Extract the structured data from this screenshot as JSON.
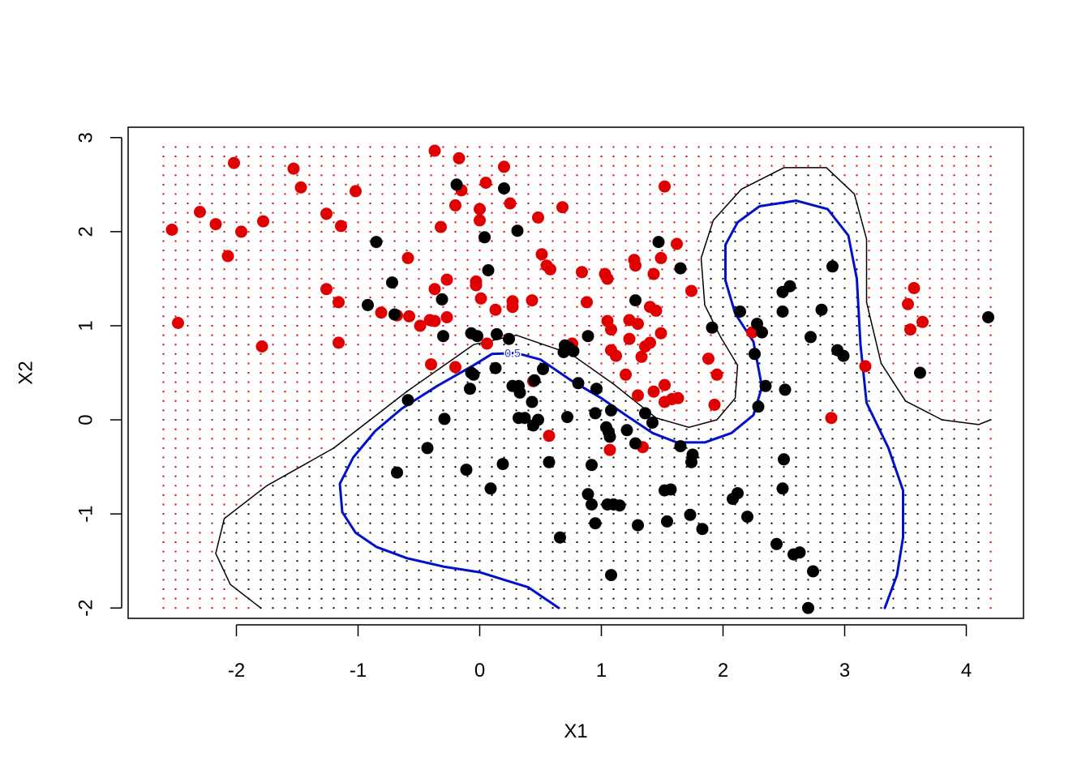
{
  "chart_data": {
    "type": "scatter",
    "title": "",
    "xlabel": "X1",
    "ylabel": "X2",
    "xlim": [
      -2.89,
      4.47
    ],
    "ylim": [
      -2.11,
      3.11
    ],
    "xticks": [
      "-2",
      "-1",
      "0",
      "1",
      "2",
      "3",
      "4"
    ],
    "xtick_values": [
      -2,
      -1,
      0,
      1,
      2,
      3,
      4
    ],
    "yticks": [
      "-2",
      "-1",
      "0",
      "1",
      "2",
      "3"
    ],
    "ytick_values": [
      -2,
      -1,
      0,
      1,
      2,
      3
    ],
    "grid": false,
    "legend": "none",
    "grid_background": {
      "x_range": [
        -2.6,
        4.2
      ],
      "y_range": [
        -2.0,
        2.9
      ],
      "columns": 69,
      "rows": 50,
      "class_colors": {
        "class_0": "#000000",
        "class_1": "#e00000"
      }
    },
    "series": [
      {
        "color": "#e00000",
        "points": [
          [
            -2.53,
            2.02
          ],
          [
            -2.48,
            1.03
          ],
          [
            -2.3,
            2.21
          ],
          [
            -2.17,
            2.08
          ],
          [
            -2.07,
            1.74
          ],
          [
            -2.02,
            2.73
          ],
          [
            -1.96,
            2.0
          ],
          [
            -1.78,
            2.11
          ],
          [
            -1.79,
            0.78
          ],
          [
            -1.53,
            2.67
          ],
          [
            -1.47,
            2.47
          ],
          [
            -1.26,
            2.19
          ],
          [
            -1.26,
            1.39
          ],
          [
            -1.16,
            1.25
          ],
          [
            -1.14,
            2.06
          ],
          [
            -1.16,
            0.82
          ],
          [
            -1.02,
            2.43
          ],
          [
            -0.81,
            1.14
          ],
          [
            -0.68,
            1.11
          ],
          [
            -0.59,
            1.72
          ],
          [
            -0.58,
            1.1
          ],
          [
            -0.49,
            1.0
          ],
          [
            -0.41,
            1.06
          ],
          [
            -0.37,
            1.39
          ],
          [
            -0.37,
            1.05
          ],
          [
            -0.37,
            2.86
          ],
          [
            -0.4,
            0.59
          ],
          [
            -0.32,
            2.05
          ],
          [
            -0.27,
            1.49
          ],
          [
            -0.27,
            1.09
          ],
          [
            -0.2,
            0.56
          ],
          [
            -0.2,
            2.28
          ],
          [
            -0.17,
            2.78
          ],
          [
            -0.15,
            2.44
          ],
          [
            -0.03,
            1.47
          ],
          [
            -0.03,
            1.43
          ],
          [
            0.0,
            2.24
          ],
          [
            0.0,
            2.12
          ],
          [
            0.01,
            1.29
          ],
          [
            0.05,
            2.52
          ],
          [
            0.06,
            0.81
          ],
          [
            0.13,
            1.17
          ],
          [
            0.2,
            2.69
          ],
          [
            0.25,
            2.3
          ],
          [
            0.27,
            1.26
          ],
          [
            0.27,
            1.2
          ],
          [
            0.43,
            1.27
          ],
          [
            0.44,
            0.41
          ],
          [
            0.48,
            2.15
          ],
          [
            0.51,
            1.76
          ],
          [
            0.55,
            1.64
          ],
          [
            0.58,
            1.6
          ],
          [
            0.57,
            -0.17
          ],
          [
            0.68,
            2.26
          ],
          [
            0.76,
            0.81
          ],
          [
            0.84,
            1.57
          ],
          [
            0.88,
            1.25
          ],
          [
            1.03,
            1.55
          ],
          [
            1.05,
            1.5
          ],
          [
            1.05,
            1.05
          ],
          [
            1.08,
            0.96
          ],
          [
            1.08,
            0.74
          ],
          [
            1.12,
            0.68
          ],
          [
            1.07,
            -0.32
          ],
          [
            1.2,
            0.48
          ],
          [
            1.23,
            0.86
          ],
          [
            1.23,
            1.06
          ],
          [
            1.27,
            1.7
          ],
          [
            1.28,
            1.64
          ],
          [
            1.3,
            1.02
          ],
          [
            1.3,
            0.26
          ],
          [
            1.33,
            0.67
          ],
          [
            1.36,
            0.78
          ],
          [
            1.4,
            0.82
          ],
          [
            1.4,
            1.2
          ],
          [
            1.45,
            1.16
          ],
          [
            1.43,
            0.3
          ],
          [
            1.43,
            1.55
          ],
          [
            1.49,
            1.72
          ],
          [
            1.49,
            0.92
          ],
          [
            1.52,
            0.37
          ],
          [
            1.52,
            2.48
          ],
          [
            1.52,
            0.19
          ],
          [
            1.58,
            0.22
          ],
          [
            1.62,
            1.87
          ],
          [
            1.63,
            0.23
          ],
          [
            1.74,
            1.37
          ],
          [
            1.88,
            0.65
          ],
          [
            1.93,
            0.16
          ],
          [
            1.95,
            0.48
          ],
          [
            1.34,
            -0.29
          ],
          [
            2.24,
            0.93
          ],
          [
            2.89,
            0.02
          ],
          [
            3.17,
            0.57
          ],
          [
            3.52,
            1.23
          ],
          [
            3.54,
            0.96
          ],
          [
            3.57,
            1.4
          ],
          [
            3.64,
            1.04
          ]
        ]
      },
      {
        "color": "#000000",
        "points": [
          [
            -0.85,
            1.89
          ],
          [
            -0.92,
            1.22
          ],
          [
            -0.72,
            1.46
          ],
          [
            -0.7,
            1.12
          ],
          [
            -0.68,
            -0.56
          ],
          [
            -0.59,
            0.21
          ],
          [
            -0.43,
            -0.3
          ],
          [
            -0.31,
            1.28
          ],
          [
            -0.3,
            0.89
          ],
          [
            -0.29,
            0.01
          ],
          [
            -0.19,
            2.5
          ],
          [
            -0.11,
            -0.53
          ],
          [
            -0.07,
            0.92
          ],
          [
            -0.08,
            0.33
          ],
          [
            -0.07,
            0.5
          ],
          [
            -0.05,
            0.48
          ],
          [
            -0.02,
            0.89
          ],
          [
            0.04,
            1.94
          ],
          [
            0.07,
            1.59
          ],
          [
            0.09,
            -0.73
          ],
          [
            0.13,
            0.55
          ],
          [
            0.14,
            0.91
          ],
          [
            0.19,
            -0.47
          ],
          [
            0.2,
            2.46
          ],
          [
            0.24,
            0.86
          ],
          [
            0.27,
            0.36
          ],
          [
            0.31,
            2.01
          ],
          [
            0.32,
            0.36
          ],
          [
            0.32,
            0.02
          ],
          [
            0.33,
            0.29
          ],
          [
            0.37,
            0.02
          ],
          [
            0.43,
            0.19
          ],
          [
            0.44,
            -0.06
          ],
          [
            0.45,
            0.42
          ],
          [
            0.48,
            0.0
          ],
          [
            0.52,
            0.54
          ],
          [
            0.57,
            -0.45
          ],
          [
            0.66,
            -1.25
          ],
          [
            0.7,
            0.79
          ],
          [
            0.69,
            0.72
          ],
          [
            0.72,
            0.03
          ],
          [
            0.73,
            0.77
          ],
          [
            0.77,
            0.73
          ],
          [
            0.81,
            0.39
          ],
          [
            0.89,
            0.89
          ],
          [
            0.89,
            -0.79
          ],
          [
            0.92,
            -0.48
          ],
          [
            0.92,
            -0.9
          ],
          [
            0.95,
            -1.1
          ],
          [
            0.95,
            0.07
          ],
          [
            0.96,
            0.33
          ],
          [
            1.04,
            -0.08
          ],
          [
            1.05,
            -0.9
          ],
          [
            1.06,
            -0.13
          ],
          [
            1.07,
            -0.18
          ],
          [
            1.08,
            0.1
          ],
          [
            1.08,
            -1.65
          ],
          [
            1.1,
            -0.9
          ],
          [
            1.15,
            -0.91
          ],
          [
            1.21,
            -0.11
          ],
          [
            1.28,
            1.27
          ],
          [
            1.28,
            -0.25
          ],
          [
            1.3,
            -1.12
          ],
          [
            1.36,
            0.07
          ],
          [
            1.42,
            -0.03
          ],
          [
            1.47,
            1.89
          ],
          [
            1.52,
            -0.75
          ],
          [
            1.54,
            -1.08
          ],
          [
            1.57,
            -0.74
          ],
          [
            1.65,
            1.61
          ],
          [
            1.65,
            -0.28
          ],
          [
            1.73,
            -1.01
          ],
          [
            1.74,
            -0.45
          ],
          [
            1.75,
            -0.37
          ],
          [
            1.83,
            -1.16
          ],
          [
            1.91,
            0.98
          ],
          [
            2.08,
            -0.84
          ],
          [
            2.12,
            -0.78
          ],
          [
            2.14,
            1.15
          ],
          [
            2.2,
            -1.03
          ],
          [
            2.26,
            0.7
          ],
          [
            2.28,
            1.02
          ],
          [
            2.29,
            0.14
          ],
          [
            2.32,
            0.93
          ],
          [
            2.35,
            0.36
          ],
          [
            2.44,
            -1.32
          ],
          [
            2.49,
            1.15
          ],
          [
            2.49,
            1.36
          ],
          [
            2.49,
            -0.73
          ],
          [
            2.5,
            -0.42
          ],
          [
            2.51,
            0.32
          ],
          [
            2.55,
            1.42
          ],
          [
            2.58,
            -1.43
          ],
          [
            2.63,
            -1.41
          ],
          [
            2.7,
            -2.0
          ],
          [
            2.72,
            0.88
          ],
          [
            2.74,
            -1.61
          ],
          [
            2.81,
            1.17
          ],
          [
            2.9,
            1.63
          ],
          [
            2.94,
            0.74
          ],
          [
            2.99,
            0.68
          ],
          [
            3.62,
            0.5
          ],
          [
            4.18,
            1.09
          ]
        ]
      }
    ],
    "contours": [
      {
        "level": "0.5",
        "label": "0.5",
        "color": "#0010cc",
        "lines": [
          [
            [
              0.65,
              -2.0
            ],
            [
              0.4,
              -1.78
            ],
            [
              0.0,
              -1.62
            ],
            [
              -0.3,
              -1.56
            ],
            [
              -0.6,
              -1.47
            ],
            [
              -0.85,
              -1.35
            ],
            [
              -1.02,
              -1.2
            ],
            [
              -1.13,
              -0.98
            ],
            [
              -1.15,
              -0.68
            ],
            [
              -1.04,
              -0.4
            ],
            [
              -0.86,
              -0.12
            ],
            [
              -0.64,
              0.12
            ],
            [
              -0.35,
              0.36
            ],
            [
              -0.05,
              0.58
            ],
            [
              0.1,
              0.7
            ],
            [
              0.3,
              0.71
            ],
            [
              0.5,
              0.64
            ],
            [
              0.75,
              0.42
            ],
            [
              1.0,
              0.23
            ],
            [
              1.2,
              0.05
            ],
            [
              1.42,
              -0.14
            ],
            [
              1.62,
              -0.24
            ],
            [
              1.85,
              -0.24
            ],
            [
              2.07,
              -0.14
            ],
            [
              2.25,
              0.05
            ],
            [
              2.32,
              0.35
            ],
            [
              2.25,
              0.83
            ],
            [
              2.1,
              1.13
            ],
            [
              2.02,
              1.48
            ],
            [
              2.02,
              1.86
            ],
            [
              2.12,
              2.1
            ],
            [
              2.3,
              2.27
            ],
            [
              2.6,
              2.33
            ],
            [
              2.86,
              2.24
            ],
            [
              3.03,
              1.96
            ],
            [
              3.1,
              1.5
            ],
            [
              3.13,
              0.8
            ],
            [
              3.18,
              0.18
            ],
            [
              3.36,
              -0.3
            ],
            [
              3.48,
              -0.75
            ],
            [
              3.48,
              -1.25
            ],
            [
              3.43,
              -1.65
            ],
            [
              3.33,
              -2.0
            ]
          ]
        ]
      },
      {
        "level": "boundary",
        "label": "",
        "color": "#000000",
        "lines": [
          [
            [
              -1.8,
              -2.0
            ],
            [
              -2.05,
              -1.75
            ],
            [
              -2.17,
              -1.42
            ],
            [
              -2.1,
              -1.05
            ],
            [
              -1.75,
              -0.7
            ],
            [
              -1.2,
              -0.3
            ],
            [
              -0.6,
              0.3
            ],
            [
              -0.05,
              0.8
            ],
            [
              0.3,
              0.9
            ],
            [
              0.75,
              0.7
            ],
            [
              1.1,
              0.38
            ],
            [
              1.45,
              0.02
            ],
            [
              1.72,
              -0.08
            ],
            [
              1.95,
              0.0
            ],
            [
              2.1,
              0.23
            ],
            [
              2.12,
              0.58
            ],
            [
              1.98,
              0.88
            ],
            [
              1.85,
              1.22
            ],
            [
              1.82,
              1.72
            ],
            [
              1.92,
              2.12
            ],
            [
              2.15,
              2.45
            ],
            [
              2.5,
              2.68
            ],
            [
              2.85,
              2.68
            ],
            [
              3.08,
              2.4
            ],
            [
              3.18,
              1.92
            ],
            [
              3.18,
              1.25
            ],
            [
              3.3,
              0.6
            ],
            [
              3.5,
              0.2
            ],
            [
              3.8,
              0.0
            ],
            [
              4.1,
              -0.05
            ],
            [
              4.2,
              0.0
            ]
          ]
        ]
      }
    ]
  }
}
